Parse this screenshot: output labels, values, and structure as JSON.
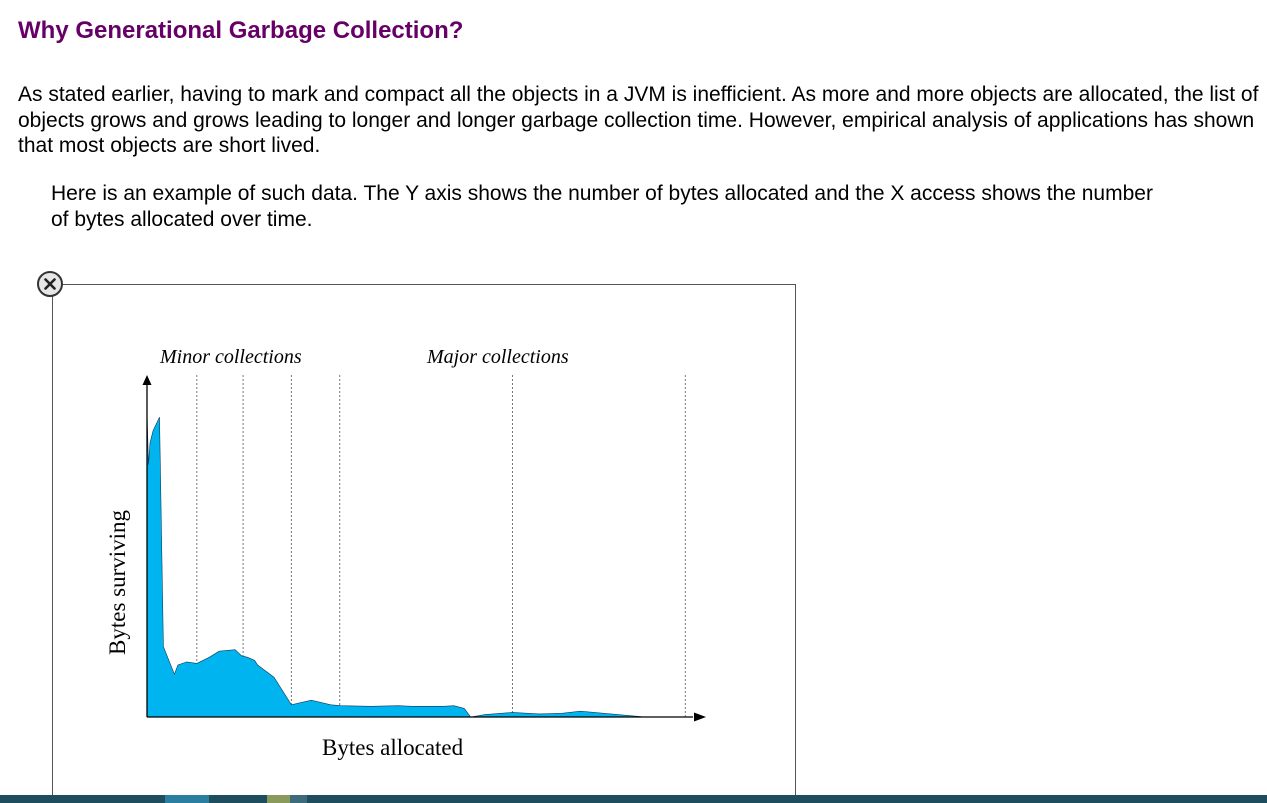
{
  "page": {
    "title": "Why Generational Garbage Collection?",
    "intro": "As stated earlier, having to mark and compact all the objects in a JVM is inefficient. As more and more objects are allocated, the list of objects grows and grows leading to longer and longer garbage collection time. However, empirical analysis of applications has shown that most objects are short lived.",
    "example": "Here is an example of such data. The Y axis shows the number of bytes allocated and the X access shows the number of bytes allocated over time."
  },
  "figure": {
    "close_icon": "close-icon",
    "colors": {
      "fill": "#00b4ef",
      "title": "#660066",
      "bottom_bar": "#1e4d5e"
    }
  },
  "chart_data": {
    "type": "area",
    "annotations": [
      "Minor collections",
      "Major collections"
    ],
    "xlabel": "Bytes allocated",
    "ylabel": "Bytes surviving",
    "xlim": [
      0,
      100
    ],
    "ylim": [
      0,
      100
    ],
    "grid": false,
    "series": [
      {
        "x": [
          0,
          0.3,
          0.6,
          1.2,
          2.5,
          3.3,
          5.5,
          6.2,
          8.0,
          10.0,
          12.5,
          14.5,
          17.7,
          19.0,
          20.2,
          21.6,
          22.2,
          25.5,
          29.0,
          33.0,
          36.9,
          39.0,
          45.0,
          50.5,
          53.2,
          59.5,
          61.6,
          63.7,
          65.0,
          67.9,
          73.4,
          78.8,
          83.3,
          87.0,
          100
        ],
        "y": [
          100,
          82.5,
          89.5,
          93.5,
          98.0,
          23.0,
          14.0,
          17.0,
          18.0,
          17.5,
          19.5,
          21.5,
          22.0,
          20.0,
          19.5,
          18.5,
          17.0,
          13.0,
          4.0,
          5.5,
          4.0,
          3.7,
          3.5,
          3.7,
          3.5,
          3.5,
          3.7,
          2.8,
          0,
          0.8,
          1.5,
          1.0,
          1.2,
          1.9,
          0
        ]
      }
    ],
    "collection_lines": {
      "minor": [
        10.0,
        19.3,
        29.0,
        38.7
      ],
      "major": [
        73.4,
        108.1
      ]
    }
  }
}
